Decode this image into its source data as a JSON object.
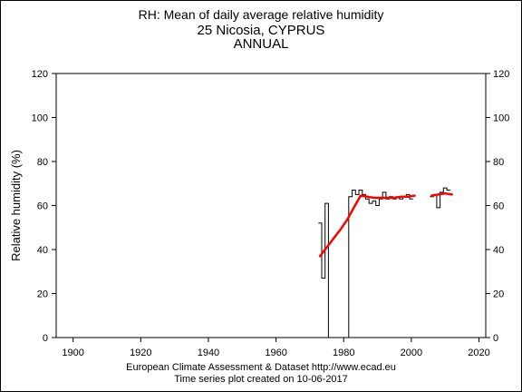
{
  "titles": {
    "line1": "RH: Mean of daily average relative humidity",
    "line2": "25 Nicosia, CYPRUS",
    "line3": "ANNUAL"
  },
  "footer": {
    "line1": "European Climate Assessment & Dataset  http://www.ecad.eu",
    "line2": "Time series plot created on 10-06-2017"
  },
  "colors": {
    "series": "#000000",
    "trend": "#ff0000",
    "axis": "#000000"
  },
  "chart_data": {
    "type": "line",
    "ylabel": "Relative humidity (%)",
    "xlabel": "",
    "xlim": [
      1895,
      2022
    ],
    "ylim": [
      0,
      120
    ],
    "xticks": [
      1900,
      1920,
      1940,
      1960,
      1980,
      2000,
      2020
    ],
    "yticks": [
      0,
      20,
      40,
      60,
      80,
      100,
      120
    ],
    "grid": false,
    "series": [
      {
        "style": "step",
        "points": [
          [
            1973,
            52
          ],
          [
            1974,
            27
          ],
          [
            1975,
            61
          ],
          [
            1976,
            0
          ],
          [
            1977,
            null
          ],
          [
            1978,
            null
          ],
          [
            1979,
            null
          ],
          [
            1980,
            null
          ],
          [
            1981,
            0
          ],
          [
            1982,
            64
          ],
          [
            1983,
            67
          ],
          [
            1984,
            65
          ],
          [
            1985,
            67
          ],
          [
            1986,
            65
          ],
          [
            1987,
            63
          ],
          [
            1988,
            61
          ],
          [
            1989,
            62
          ],
          [
            1990,
            60
          ],
          [
            1991,
            63
          ],
          [
            1992,
            66
          ],
          [
            1993,
            63
          ],
          [
            1994,
            64
          ],
          [
            1995,
            63
          ],
          [
            1996,
            64
          ],
          [
            1997,
            63
          ],
          [
            1998,
            64
          ],
          [
            1999,
            65
          ],
          [
            2000,
            63
          ],
          [
            2001,
            null
          ],
          [
            2002,
            null
          ],
          [
            2003,
            null
          ],
          [
            2004,
            null
          ],
          [
            2005,
            null
          ],
          [
            2006,
            64
          ],
          [
            2007,
            65
          ],
          [
            2008,
            59
          ],
          [
            2009,
            66
          ],
          [
            2010,
            68
          ],
          [
            2011,
            67
          ]
        ]
      },
      {
        "style": "trend",
        "segments": [
          [
            [
              1973,
              37
            ],
            [
              1975,
              41
            ],
            [
              1977,
              45
            ],
            [
              1979,
              49
            ],
            [
              1981,
              53.5
            ],
            [
              1983,
              59
            ],
            [
              1985,
              64.5
            ],
            [
              1987,
              64
            ],
            [
              1989,
              63.5
            ],
            [
              1991,
              63.5
            ],
            [
              1993,
              63.5
            ],
            [
              1995,
              63.5
            ],
            [
              1997,
              64
            ],
            [
              1999,
              64
            ],
            [
              2001,
              64.5
            ]
          ],
          [
            [
              2006,
              64.5
            ],
            [
              2008,
              65
            ],
            [
              2010,
              65.5
            ],
            [
              2012,
              65
            ]
          ]
        ]
      }
    ]
  }
}
